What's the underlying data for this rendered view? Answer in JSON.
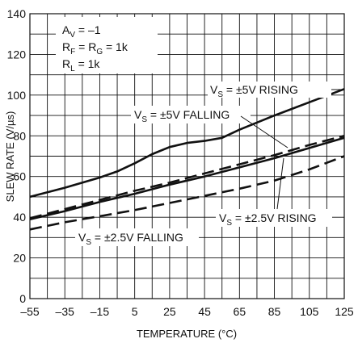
{
  "chart_data": {
    "type": "line",
    "xlabel": "TEMPERATURE (°C)",
    "ylabel": "SLEW RATE (V/µs)",
    "xlim": [
      -55,
      125
    ],
    "ylim": [
      0,
      140
    ],
    "x_ticks": [
      "–55",
      "–35",
      "–15",
      "5",
      "25",
      "45",
      "65",
      "85",
      "105",
      "125"
    ],
    "y_ticks": [
      "0",
      "20",
      "40",
      "60",
      "80",
      "100",
      "120",
      "140"
    ],
    "grid": true,
    "conditions": {
      "av_sym": "A",
      "av_sub": "V",
      "av_val": " = –1",
      "rf_sym": "R",
      "rf_sub": "F",
      "rf_mid": " = R",
      "rg_sub": "G",
      "rf_val": " = 1k",
      "rl_sym": "R",
      "rl_sub": "L",
      "rl_val": " = 1k"
    },
    "series": [
      {
        "sym": "V",
        "sub": "S",
        "name": " = ±5V RISING",
        "style": "solid",
        "x": [
          -55,
          -35,
          -15,
          -5,
          5,
          15,
          25,
          35,
          45,
          55,
          65,
          85,
          105,
          125
        ],
        "y": [
          50,
          54.5,
          59.5,
          62.5,
          66.5,
          71,
          74.5,
          76.5,
          77.5,
          79,
          83,
          90,
          96.5,
          103
        ]
      },
      {
        "sym": "V",
        "sub": "S",
        "name": " = ±5V FALLING",
        "style": "dashed",
        "x": [
          -55,
          -35,
          -15,
          5,
          25,
          45,
          65,
          85,
          105,
          125
        ],
        "y": [
          39.5,
          44,
          48.5,
          53,
          57,
          61.5,
          66,
          70.5,
          75.5,
          80
        ]
      },
      {
        "sym": "V",
        "sub": "S",
        "name": " = ±2.5V RISING",
        "style": "solid",
        "x": [
          -55,
          -35,
          -15,
          5,
          25,
          45,
          65,
          85,
          105,
          125
        ],
        "y": [
          39,
          43,
          47.5,
          51.5,
          56,
          60,
          64.5,
          69,
          74,
          79
        ]
      },
      {
        "sym": "V",
        "sub": "S",
        "name": " = ±2.5V FALLING",
        "style": "dashed",
        "x": [
          -55,
          -35,
          -15,
          5,
          25,
          45,
          65,
          85,
          105,
          125
        ],
        "y": [
          34,
          37.5,
          40.5,
          43.5,
          47,
          50.5,
          54,
          58,
          63.5,
          70
        ]
      }
    ]
  }
}
